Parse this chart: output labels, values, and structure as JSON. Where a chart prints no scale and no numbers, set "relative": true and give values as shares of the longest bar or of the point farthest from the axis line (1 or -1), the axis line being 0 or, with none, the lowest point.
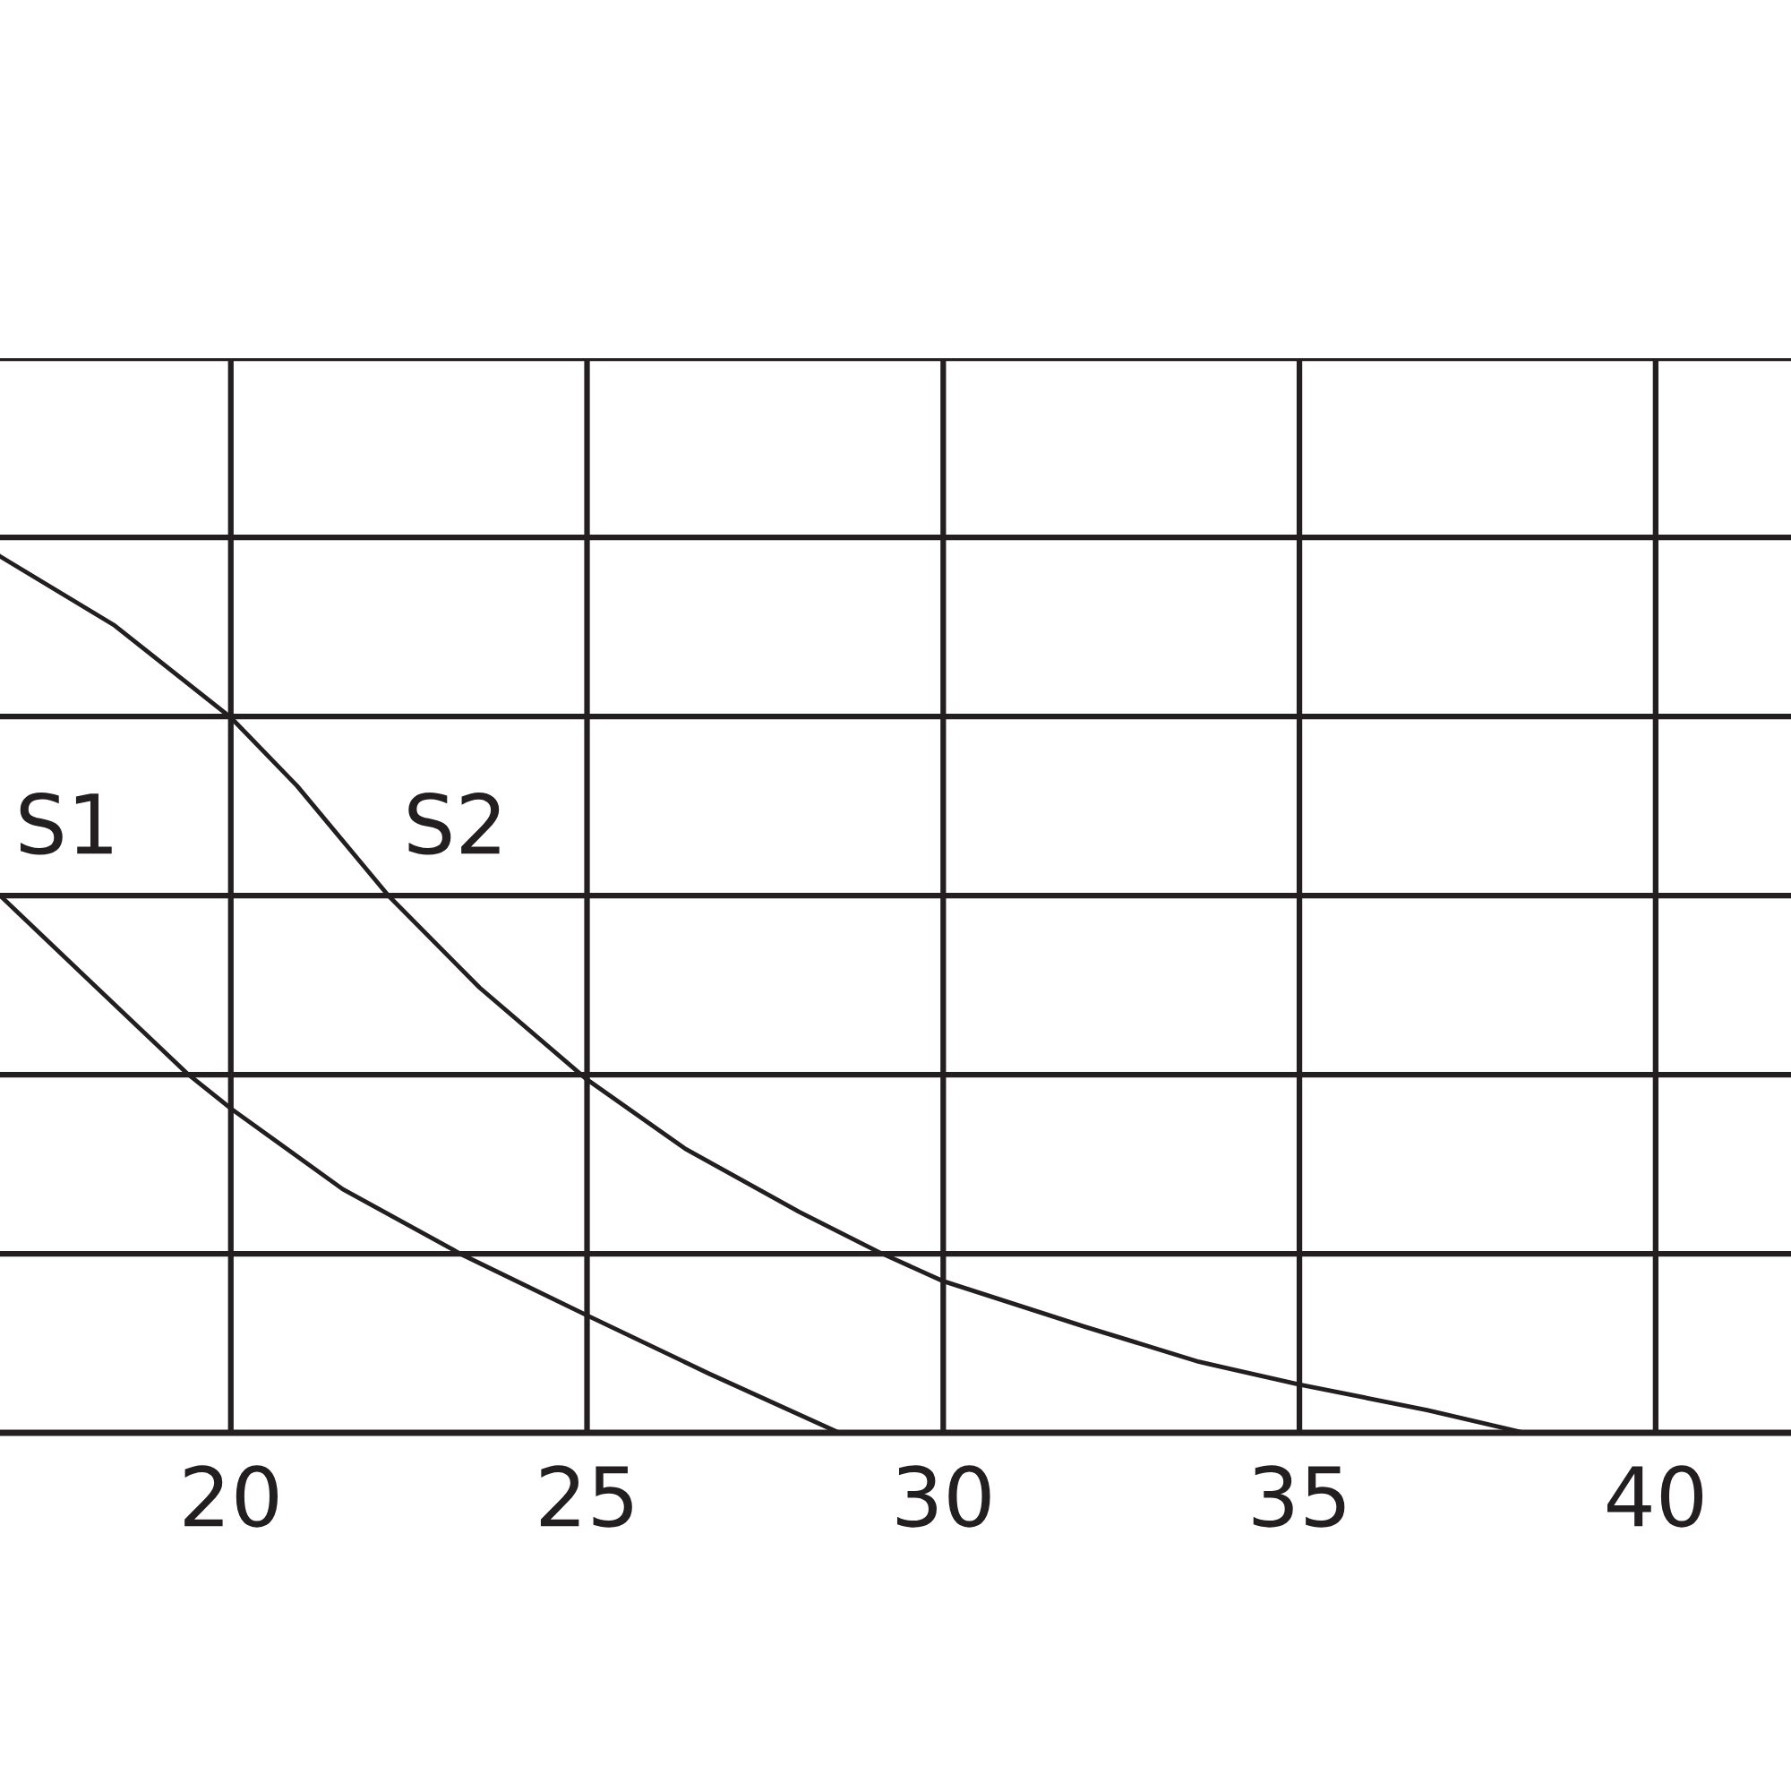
{
  "chart_data": {
    "type": "line",
    "relative": true,
    "xlim": [
      16.76,
      41.9
    ],
    "xticks": [
      20,
      25,
      30,
      35,
      40
    ],
    "grid": true,
    "legend": false,
    "marker": "none",
    "line_style": "solid",
    "series": [
      {
        "name": "S1",
        "color": "#231f20",
        "x": [
          16.76,
          18.04,
          19.4,
          20,
          21.57,
          23.25,
          25,
          26.7,
          28.54
        ],
        "values": [
          0.613,
          0.514,
          0.409,
          0.37,
          0.278,
          0.203,
          0.134,
          0.068,
          0.0
        ]
      },
      {
        "name": "S2",
        "color": "#231f20",
        "x": [
          16.76,
          18.37,
          20,
          20.93,
          22.21,
          23.49,
          25,
          26.38,
          27.98,
          29.1,
          30,
          31.99,
          33.59,
          35,
          36.79,
          38.16
        ],
        "values": [
          1.0,
          0.921,
          0.816,
          0.738,
          0.613,
          0.508,
          0.403,
          0.324,
          0.252,
          0.206,
          0.173,
          0.121,
          0.081,
          0.055,
          0.026,
          0.0
        ]
      }
    ]
  }
}
